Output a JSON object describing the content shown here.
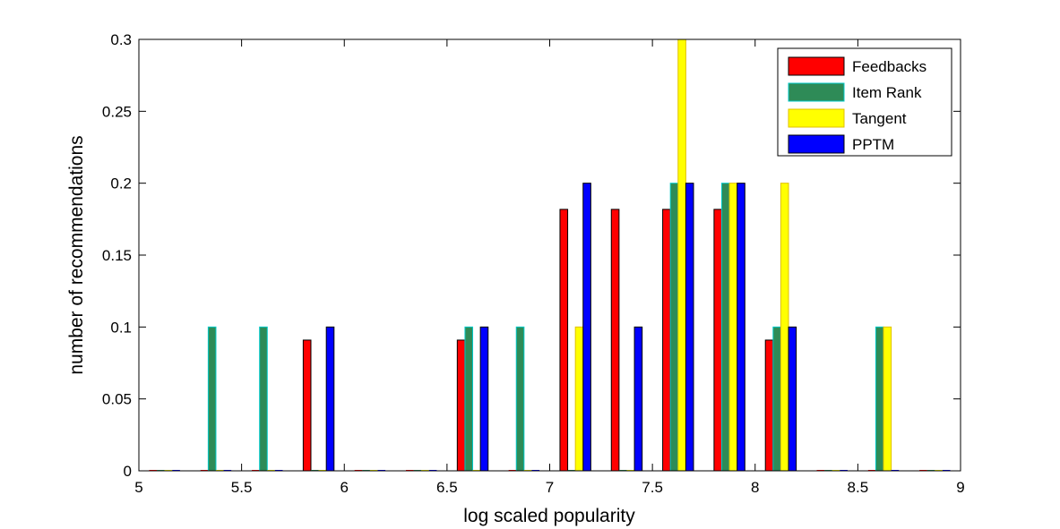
{
  "chart_data": {
    "type": "bar",
    "title": "",
    "xlabel": "log scaled popularity",
    "ylabel": "number of recommendations",
    "xlim": [
      5,
      9
    ],
    "ylim": [
      0,
      0.3
    ],
    "xticks": [
      "5",
      "5.5",
      "6",
      "6.5",
      "7",
      "7.5",
      "8",
      "8.5",
      "9"
    ],
    "xtick_values": [
      5,
      5.5,
      6,
      6.5,
      7,
      7.5,
      8,
      8.5,
      9
    ],
    "yticks": [
      "0",
      "0.05",
      "0.1",
      "0.15",
      "0.2",
      "0.25",
      "0.3"
    ],
    "ytick_values": [
      0,
      0.05,
      0.1,
      0.15,
      0.2,
      0.25,
      0.3
    ],
    "grid": false,
    "legend_position": "top-right",
    "bin_centers": [
      5.125,
      5.375,
      5.625,
      5.875,
      6.125,
      6.375,
      6.625,
      6.875,
      7.125,
      7.375,
      7.625,
      7.875,
      8.125,
      8.375,
      8.625,
      8.875
    ],
    "series": [
      {
        "name": "Feedbacks",
        "color": "#ff0000",
        "values": [
          0,
          0,
          0,
          0.0909,
          0,
          0,
          0.0909,
          0,
          0.1818,
          0.1818,
          0.1818,
          0.1818,
          0.0909,
          0,
          0,
          0
        ]
      },
      {
        "name": "Item Rank",
        "color": "#2e8b57",
        "values": [
          0,
          0.1,
          0.1,
          0,
          0,
          0,
          0.1,
          0.1,
          0,
          0,
          0.2,
          0.2,
          0.1,
          0,
          0.1,
          0
        ]
      },
      {
        "name": "Tangent",
        "color": "#ffff00",
        "values": [
          0,
          0,
          0,
          0,
          0,
          0,
          0,
          0,
          0.1,
          0,
          0.3,
          0.2,
          0.2,
          0,
          0.1,
          0
        ]
      },
      {
        "name": "PPTM",
        "color": "#0000ff",
        "values": [
          0,
          0,
          0,
          0.1,
          0,
          0,
          0.1,
          0,
          0.2,
          0.1,
          0.2,
          0.2,
          0.1,
          0,
          0,
          0
        ]
      }
    ]
  }
}
